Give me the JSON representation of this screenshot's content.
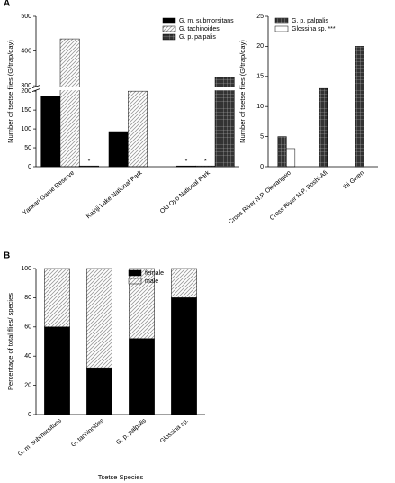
{
  "chart_data": [
    {
      "type": "bar",
      "panel_label": "A",
      "ylabel": "Number of tsetse flies (G/trap/day)",
      "categories": [
        "Yankari Game Reserve",
        "Kainji Lake National Park",
        "Old Oyo National Park"
      ],
      "series": [
        {
          "name": "G. m. submorsitans",
          "color": "#000000",
          "pattern": "solid",
          "values": [
            187,
            93,
            2
          ],
          "annotations": [
            null,
            null,
            "*"
          ]
        },
        {
          "name": "G. tachinoides",
          "color": "#9a9a9a",
          "pattern": "hatch",
          "values": [
            435,
            200,
            2
          ],
          "annotations": [
            null,
            null,
            "*"
          ]
        },
        {
          "name": "G. p. palpalis",
          "color": "#333333",
          "pattern": "grid",
          "values": [
            2,
            0,
            324
          ],
          "annotations": [
            "*",
            null,
            null
          ]
        }
      ],
      "ylim": [
        0,
        500
      ],
      "ybreak": [
        200,
        300
      ],
      "yticks": [
        0,
        50,
        100,
        150,
        200,
        300,
        400,
        500
      ],
      "legend": "upper right"
    },
    {
      "type": "bar",
      "ylabel": "Number of tsetse flies (G/trap/day)",
      "categories": [
        "Cross River N.P. Okwangwo",
        "Cross River N.P. Boshi-Afi",
        "Ibi Gwen"
      ],
      "series": [
        {
          "name": "G. p. palpalis",
          "color": "#333333",
          "pattern": "grid",
          "values": [
            5,
            13,
            20
          ]
        },
        {
          "name": "Glossina sp. ***",
          "color": "#ffffff",
          "pattern": "solid",
          "values": [
            3,
            null,
            null
          ]
        }
      ],
      "ylim": [
        0,
        25
      ],
      "yticks": [
        0,
        5,
        10,
        15,
        20,
        25
      ],
      "legend": "upper left"
    },
    {
      "type": "stacked_bar",
      "panel_label": "B",
      "ylabel": "Percentage of total flies/ species",
      "xlabel": "Tsetse Species",
      "categories": [
        "G. m. submorsitans",
        "G. tachinoides",
        "G. p. palpalis",
        "Glossina sp."
      ],
      "series": [
        {
          "name": "female",
          "color": "#000000",
          "pattern": "solid",
          "values": [
            60,
            32,
            52,
            80
          ]
        },
        {
          "name": "male",
          "color": "#9a9a9a",
          "pattern": "hatch",
          "values": [
            40,
            68,
            48,
            20
          ]
        }
      ],
      "ylim": [
        0,
        100
      ],
      "yticks": [
        0,
        20,
        40,
        60,
        80,
        100
      ],
      "legend": "upper right"
    }
  ]
}
